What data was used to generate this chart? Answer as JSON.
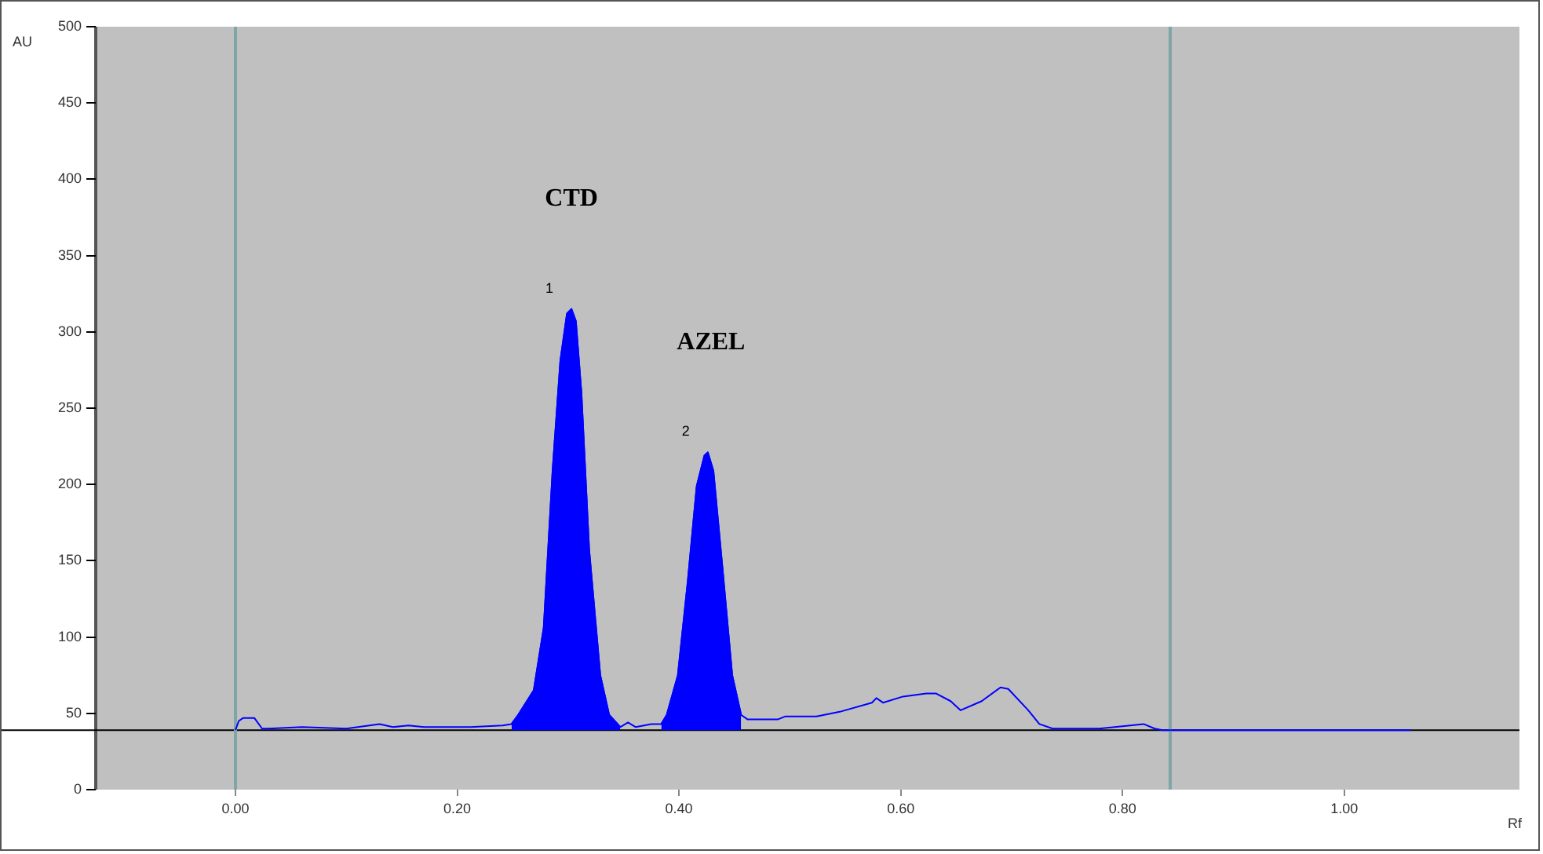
{
  "chart_data": {
    "type": "line",
    "xlabel": "Rf",
    "ylabel": "AU",
    "xlim": [
      -0.126,
      1.158
    ],
    "ylim": [
      0,
      500
    ],
    "xticks": [
      {
        "value": 0,
        "label": "0.00"
      },
      {
        "value": 0.2,
        "label": "0.20"
      },
      {
        "value": 0.4,
        "label": "0.40"
      },
      {
        "value": 0.6,
        "label": "0.60"
      },
      {
        "value": 0.8,
        "label": "0.80"
      },
      {
        "value": 1,
        "label": "1.00"
      }
    ],
    "yticks": [
      0,
      50,
      100,
      150,
      200,
      250,
      300,
      350,
      400,
      450,
      500
    ],
    "grid": false,
    "legend": false,
    "marker": "none",
    "line_style": "solid",
    "series": [
      {
        "type": "line",
        "color": "#0000ff",
        "x": [
          0,
          0.003,
          0.007,
          0.017,
          0.024,
          0.03,
          0.06,
          0.1,
          0.13,
          0.142,
          0.156,
          0.17,
          0.184,
          0.212,
          0.241,
          0.249,
          0.255,
          0.269,
          0.278,
          0.286,
          0.293,
          0.299,
          0.303,
          0.307,
          0.312,
          0.319,
          0.329,
          0.337,
          0.347,
          0.354,
          0.361,
          0.375,
          0.384,
          0.389,
          0.399,
          0.408,
          0.416,
          0.423,
          0.426,
          0.431,
          0.439,
          0.448,
          0.456,
          0.462,
          0.489,
          0.496,
          0.524,
          0.545,
          0.574,
          0.578,
          0.584,
          0.602,
          0.623,
          0.632,
          0.645,
          0.654,
          0.673,
          0.69,
          0.697,
          0.715,
          0.725,
          0.737,
          0.779,
          0.807,
          0.819,
          0.829,
          0.836,
          0.843,
          1.06
        ],
        "values": [
          39,
          45,
          47,
          47,
          40,
          40,
          41,
          40,
          43,
          41,
          42,
          41,
          41,
          41,
          42,
          43,
          49,
          65,
          106,
          209,
          281,
          312,
          315,
          307,
          260,
          157,
          75,
          49,
          41,
          44,
          41,
          43,
          43,
          49,
          75,
          137,
          199,
          219,
          221,
          209,
          147,
          75,
          49,
          46,
          46,
          48,
          48,
          51,
          57,
          60,
          57,
          61,
          63,
          63,
          58,
          52,
          58,
          67,
          66,
          52,
          43,
          40,
          40,
          42,
          43,
          40,
          39,
          39,
          39
        ]
      },
      {
        "type": "area",
        "color": "#0000ff",
        "x": [
          0.249,
          0.255,
          0.269,
          0.278,
          0.286,
          0.293,
          0.299,
          0.303,
          0.307,
          0.312,
          0.319,
          0.329,
          0.337,
          0.347
        ],
        "values": [
          43,
          49,
          65,
          106,
          209,
          281,
          312,
          315,
          307,
          260,
          157,
          75,
          49,
          41
        ]
      },
      {
        "type": "area",
        "color": "#0000ff",
        "x": [
          0.384,
          0.389,
          0.399,
          0.408,
          0.416,
          0.423,
          0.426,
          0.431,
          0.439,
          0.448,
          0.456
        ],
        "values": [
          43,
          49,
          75,
          137,
          199,
          219,
          221,
          209,
          147,
          75,
          49
        ]
      }
    ],
    "ref_lines": [
      {
        "axis": "y",
        "value": 39,
        "color": "#000000"
      },
      {
        "axis": "x",
        "value": 0,
        "color": "#7fa5a5"
      },
      {
        "axis": "x",
        "value": 0.843,
        "color": "#7fa5a5"
      }
    ],
    "annotations": [
      "CTD",
      "AZEL",
      "1",
      "2"
    ]
  }
}
